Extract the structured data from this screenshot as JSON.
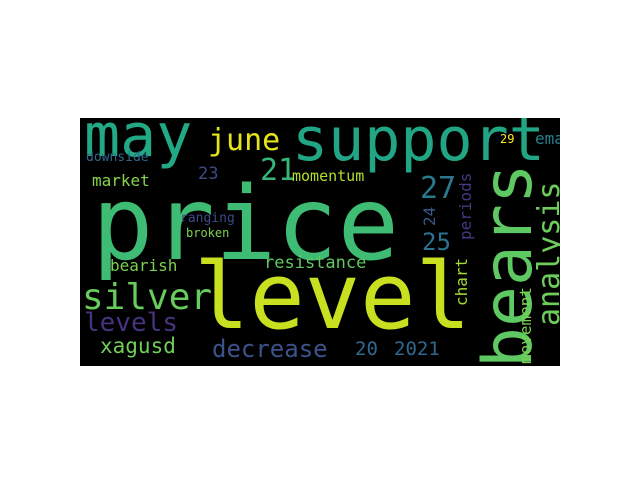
{
  "wordcloud": {
    "words": [
      {
        "text": "price",
        "color": "#3fbc73"
      },
      {
        "text": "level",
        "color": "#c8e020"
      },
      {
        "text": "support",
        "color": "#21a585"
      },
      {
        "text": "may",
        "color": "#22a884"
      },
      {
        "text": "bears",
        "color": "#5ec962"
      },
      {
        "text": "analysis",
        "color": "#6ccd5a"
      },
      {
        "text": "silver",
        "color": "#67cc5c"
      },
      {
        "text": "june",
        "color": "#e5e419"
      },
      {
        "text": "21",
        "color": "#35b779"
      },
      {
        "text": "27",
        "color": "#2a788e"
      },
      {
        "text": "levels",
        "color": "#46327e"
      },
      {
        "text": "xagusd",
        "color": "#6ece58"
      },
      {
        "text": "decrease",
        "color": "#3b528b"
      },
      {
        "text": "20",
        "color": "#31688e"
      },
      {
        "text": "2021",
        "color": "#31688e"
      },
      {
        "text": "25",
        "color": "#2c728e"
      },
      {
        "text": "movement",
        "color": "#7ad151"
      },
      {
        "text": "chart",
        "color": "#a5db36"
      },
      {
        "text": "periods",
        "color": "#443983"
      },
      {
        "text": "24",
        "color": "#38588c"
      },
      {
        "text": "resistance",
        "color": "#5ec962"
      },
      {
        "text": "bearish",
        "color": "#7ad151"
      },
      {
        "text": "market",
        "color": "#86d549"
      },
      {
        "text": "momentum",
        "color": "#b5de2b"
      },
      {
        "text": "23",
        "color": "#3e4a89"
      },
      {
        "text": "ranging",
        "color": "#3e4989"
      },
      {
        "text": "broken",
        "color": "#7fd34e"
      },
      {
        "text": "downside",
        "color": "#31688e"
      },
      {
        "text": "ema",
        "color": "#277f8e"
      },
      {
        "text": "29",
        "color": "#fde725"
      }
    ]
  }
}
